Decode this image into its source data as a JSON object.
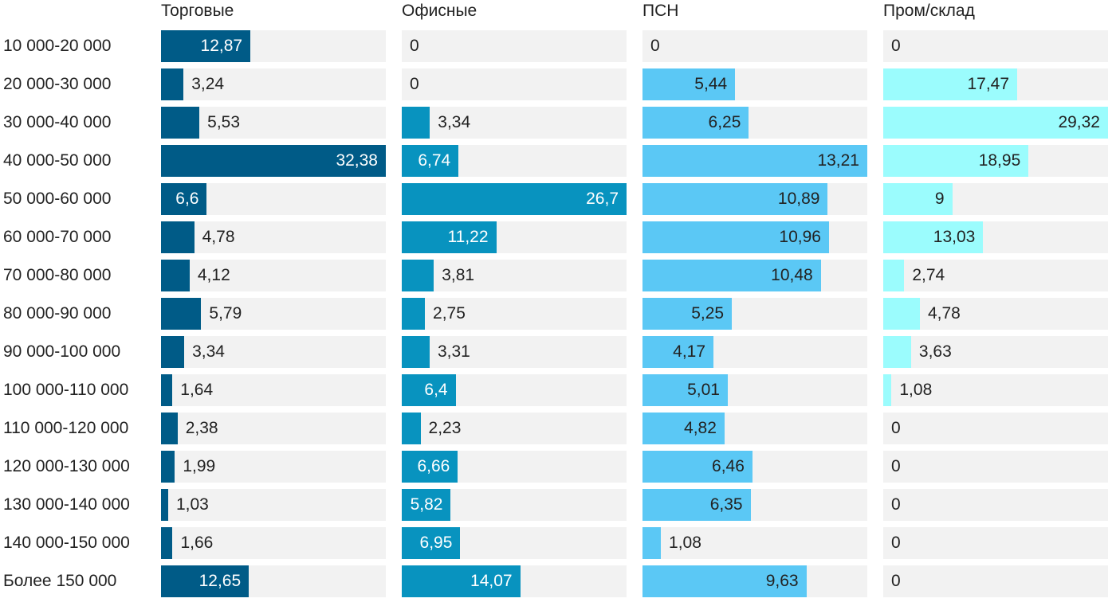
{
  "chart_data": {
    "type": "bar",
    "orientation": "horizontal",
    "layout": "small-multiples",
    "categories": [
      "10 000-20 000",
      "20 000-30 000",
      "30 000-40 000",
      "40 000-50 000",
      "50 000-60 000",
      "60 000-70 000",
      "70 000-80 000",
      "80 000-90 000",
      "90 000-100 000",
      "100 000-110 000",
      "110 000-120 000",
      "120 000-130 000",
      "130 000-140 000",
      "140 000-150 000",
      "Более 150 000"
    ],
    "series": [
      {
        "name": "Торговые",
        "color": "#005b87",
        "label_color_inside": "#ffffff",
        "values": [
          12.87,
          3.24,
          5.53,
          32.38,
          6.6,
          4.78,
          4.12,
          5.79,
          3.34,
          1.64,
          2.38,
          1.99,
          1.03,
          1.66,
          12.65
        ]
      },
      {
        "name": "Офисные",
        "color": "#0893bf",
        "label_color_inside": "#ffffff",
        "values": [
          0,
          0,
          3.34,
          6.74,
          26.7,
          11.22,
          3.81,
          2.75,
          3.31,
          6.4,
          2.23,
          6.66,
          5.82,
          6.95,
          14.07
        ]
      },
      {
        "name": "ПСН",
        "color": "#5bc8f5",
        "label_color_inside": "#222222",
        "values": [
          0,
          5.44,
          6.25,
          13.21,
          10.89,
          10.96,
          10.48,
          5.25,
          4.17,
          5.01,
          4.82,
          6.46,
          6.35,
          1.08,
          9.63
        ]
      },
      {
        "name": "Пром/склад",
        "color": "#9bfcfd",
        "label_color_inside": "#222222",
        "values": [
          0,
          17.47,
          29.32,
          18.95,
          9,
          13.03,
          2.74,
          4.78,
          3.63,
          1.08,
          0,
          0,
          0,
          0,
          0
        ]
      }
    ],
    "number_format": "comma decimal",
    "grid": false,
    "legend": "none"
  }
}
